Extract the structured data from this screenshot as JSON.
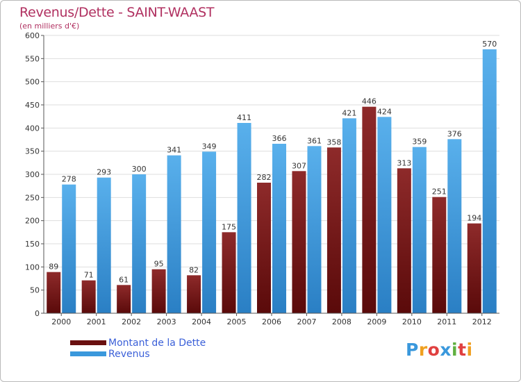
{
  "title": "Revenus/Dette - SAINT-WAAST",
  "subtitle": "(en milliers d'€)",
  "colors": {
    "dette": "#7a1a1a",
    "revenus": "#3a98dc",
    "title": "#b03060",
    "legend_text": "#3a5fd8"
  },
  "legend": {
    "dette_label": "Montant de la Dette",
    "revenus_label": "Revenus"
  },
  "logo": {
    "text": "Proxiti"
  },
  "chart_data": {
    "type": "bar",
    "title": "Revenus/Dette - SAINT-WAAST",
    "subtitle": "(en milliers d'€)",
    "xlabel": "",
    "ylabel": "",
    "ylim": [
      0,
      600
    ],
    "yticks": [
      0,
      50,
      100,
      150,
      200,
      250,
      300,
      350,
      400,
      450,
      500,
      550,
      600
    ],
    "grid": true,
    "legend_position": "bottom-left",
    "categories": [
      "2000",
      "2001",
      "2002",
      "2003",
      "2004",
      "2005",
      "2006",
      "2007",
      "2008",
      "2009",
      "2010",
      "2011",
      "2012"
    ],
    "series": [
      {
        "name": "Montant de la Dette",
        "values": [
          89,
          71,
          61,
          95,
          82,
          175,
          282,
          307,
          358,
          446,
          313,
          251,
          194
        ]
      },
      {
        "name": "Revenus",
        "values": [
          278,
          293,
          300,
          341,
          349,
          411,
          366,
          361,
          421,
          424,
          359,
          376,
          570
        ]
      }
    ]
  }
}
